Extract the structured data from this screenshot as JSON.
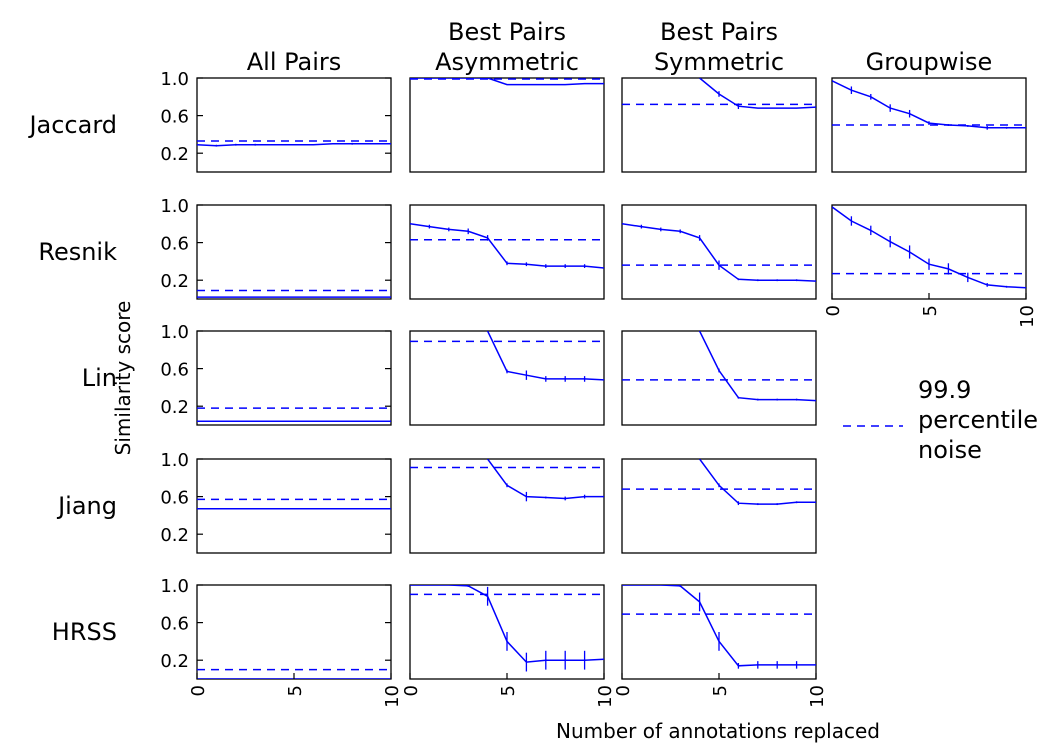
{
  "figure": {
    "xlabel": "Number of annotations replaced",
    "ylabel": "Similarity score",
    "columns": [
      "All Pairs",
      "Best Pairs\nAsymmetric",
      "Best Pairs\nSymmetric",
      "Groupwise"
    ],
    "rows": [
      "Jaccard",
      "Resnik",
      "Lin",
      "Jiang",
      "HRSS"
    ],
    "legend": {
      "label": "99.9\npercentile\nnoise",
      "position": "right",
      "style": "dashed"
    },
    "colors": {
      "series": "#0000ff",
      "noise": "#0000ff",
      "frame": "#000000"
    }
  },
  "chart_data": [
    {
      "type": "line",
      "row": "Jaccard",
      "column": "All Pairs",
      "xlim": [
        0,
        10
      ],
      "ylim": [
        0.0,
        1.0
      ],
      "y_ticks": [
        "1.0",
        "0.6",
        "0.2"
      ],
      "x_ticks": [],
      "grid": false,
      "noise": 0.33,
      "x": [
        0,
        1,
        2,
        3,
        4,
        5,
        6,
        7,
        8,
        9,
        10
      ],
      "y": [
        0.29,
        0.28,
        0.29,
        0.29,
        0.29,
        0.29,
        0.29,
        0.3,
        0.3,
        0.3,
        0.3
      ],
      "err": [
        0,
        0.01,
        0.01,
        0.01,
        0,
        0,
        0,
        0,
        0.01,
        0,
        0
      ]
    },
    {
      "type": "line",
      "row": "Jaccard",
      "column": "Best Pairs\nAsymmetric",
      "xlim": [
        0,
        10
      ],
      "ylim": [
        0.0,
        1.0
      ],
      "y_ticks": [],
      "x_ticks": [],
      "grid": false,
      "noise": 0.99,
      "x": [
        0,
        1,
        2,
        3,
        4,
        5,
        6,
        7,
        8,
        9,
        10
      ],
      "y": [
        1.0,
        1.0,
        1.0,
        1.0,
        1.0,
        0.93,
        0.93,
        0.93,
        0.93,
        0.94,
        0.94
      ],
      "err": [
        0,
        0,
        0,
        0,
        0,
        0,
        0,
        0,
        0,
        0,
        0
      ]
    },
    {
      "type": "line",
      "row": "Jaccard",
      "column": "Best Pairs\nSymmetric",
      "xlim": [
        0,
        10
      ],
      "ylim": [
        0.0,
        1.0
      ],
      "y_ticks": [],
      "x_ticks": [],
      "grid": false,
      "noise": 0.72,
      "x": [
        4,
        5,
        6,
        7,
        8,
        9,
        10
      ],
      "y": [
        1.0,
        0.83,
        0.7,
        0.68,
        0.68,
        0.68,
        0.69
      ],
      "err": [
        0,
        0.03,
        0.03,
        0,
        0,
        0,
        0
      ]
    },
    {
      "type": "line",
      "row": "Jaccard",
      "column": "Groupwise",
      "xlim": [
        0,
        10
      ],
      "ylim": [
        0.0,
        1.0
      ],
      "y_ticks": [],
      "x_ticks": [],
      "grid": false,
      "noise": 0.5,
      "x": [
        0,
        1,
        2,
        3,
        4,
        5,
        6,
        7,
        8,
        9,
        10
      ],
      "y": [
        0.97,
        0.87,
        0.8,
        0.68,
        0.62,
        0.52,
        0.5,
        0.49,
        0.47,
        0.47,
        0.47
      ],
      "err": [
        0,
        0.04,
        0.03,
        0.04,
        0.04,
        0.02,
        0.01,
        0.01,
        0.02,
        0.01,
        0
      ]
    },
    {
      "type": "line",
      "row": "Resnik",
      "column": "All Pairs",
      "xlim": [
        0,
        10
      ],
      "ylim": [
        0.0,
        1.0
      ],
      "y_ticks": [
        "1.0",
        "0.6",
        "0.2"
      ],
      "x_ticks": [],
      "grid": false,
      "noise": 0.09,
      "x": [
        0,
        1,
        2,
        3,
        4,
        5,
        6,
        7,
        8,
        9,
        10
      ],
      "y": [
        0.02,
        0.02,
        0.02,
        0.02,
        0.02,
        0.02,
        0.02,
        0.02,
        0.02,
        0.02,
        0.02
      ],
      "err": [
        0,
        0,
        0,
        0,
        0,
        0,
        0,
        0,
        0,
        0,
        0
      ]
    },
    {
      "type": "line",
      "row": "Resnik",
      "column": "Best Pairs\nAsymmetric",
      "xlim": [
        0,
        10
      ],
      "ylim": [
        0.0,
        1.0
      ],
      "y_ticks": [],
      "x_ticks": [],
      "grid": false,
      "noise": 0.63,
      "x": [
        0,
        1,
        2,
        3,
        4,
        5,
        6,
        7,
        8,
        9,
        10
      ],
      "y": [
        0.8,
        0.77,
        0.74,
        0.72,
        0.65,
        0.38,
        0.37,
        0.35,
        0.35,
        0.35,
        0.33
      ],
      "err": [
        0,
        0.02,
        0.02,
        0.03,
        0.03,
        0.02,
        0.02,
        0.02,
        0.02,
        0.02,
        0
      ]
    },
    {
      "type": "line",
      "row": "Resnik",
      "column": "Best Pairs\nSymmetric",
      "xlim": [
        0,
        10
      ],
      "ylim": [
        0.0,
        1.0
      ],
      "y_ticks": [],
      "x_ticks": [],
      "grid": false,
      "noise": 0.36,
      "x": [
        0,
        1,
        2,
        3,
        4,
        5,
        6,
        7,
        8,
        9,
        10
      ],
      "y": [
        0.8,
        0.77,
        0.74,
        0.72,
        0.65,
        0.36,
        0.21,
        0.2,
        0.2,
        0.2,
        0.19
      ],
      "err": [
        0,
        0.02,
        0.02,
        0.02,
        0.03,
        0.05,
        0.01,
        0.01,
        0.01,
        0.01,
        0
      ]
    },
    {
      "type": "line",
      "row": "Resnik",
      "column": "Groupwise",
      "xlim": [
        0,
        10
      ],
      "ylim": [
        0.0,
        1.0
      ],
      "y_ticks": [],
      "x_ticks": [
        "0",
        "5",
        "10"
      ],
      "grid": false,
      "noise": 0.27,
      "x": [
        0,
        1,
        2,
        3,
        4,
        5,
        6,
        7,
        8,
        9,
        10
      ],
      "y": [
        0.98,
        0.83,
        0.73,
        0.61,
        0.5,
        0.37,
        0.32,
        0.23,
        0.15,
        0.13,
        0.12
      ],
      "err": [
        0,
        0.05,
        0.05,
        0.06,
        0.07,
        0.06,
        0.06,
        0.05,
        0.02,
        0.01,
        0
      ]
    },
    {
      "type": "line",
      "row": "Lin",
      "column": "All Pairs",
      "xlim": [
        0,
        10
      ],
      "ylim": [
        0.0,
        1.0
      ],
      "y_ticks": [
        "1.0",
        "0.6",
        "0.2"
      ],
      "x_ticks": [],
      "grid": false,
      "noise": 0.18,
      "x": [
        0,
        1,
        2,
        3,
        4,
        5,
        6,
        7,
        8,
        9,
        10
      ],
      "y": [
        0.04,
        0.04,
        0.04,
        0.04,
        0.04,
        0.04,
        0.04,
        0.04,
        0.04,
        0.04,
        0.04
      ],
      "err": [
        0,
        0,
        0,
        0,
        0,
        0,
        0,
        0,
        0,
        0,
        0
      ]
    },
    {
      "type": "line",
      "row": "Lin",
      "column": "Best Pairs\nAsymmetric",
      "xlim": [
        0,
        10
      ],
      "ylim": [
        0.0,
        1.0
      ],
      "y_ticks": [],
      "x_ticks": [],
      "grid": false,
      "noise": 0.89,
      "x": [
        4,
        5,
        6,
        7,
        8,
        9,
        10
      ],
      "y": [
        1.0,
        0.57,
        0.53,
        0.49,
        0.49,
        0.49,
        0.48
      ],
      "err": [
        0,
        0.02,
        0.05,
        0.03,
        0.03,
        0.03,
        0
      ]
    },
    {
      "type": "line",
      "row": "Lin",
      "column": "Best Pairs\nSymmetric",
      "xlim": [
        0,
        10
      ],
      "ylim": [
        0.0,
        1.0
      ],
      "y_ticks": [],
      "x_ticks": [],
      "grid": false,
      "noise": 0.48,
      "x": [
        4,
        5,
        6,
        7,
        8,
        9,
        10
      ],
      "y": [
        1.0,
        0.58,
        0.29,
        0.27,
        0.27,
        0.27,
        0.26
      ],
      "err": [
        0,
        0.02,
        0.01,
        0.01,
        0.01,
        0.01,
        0
      ]
    },
    {
      "type": "line",
      "row": "Jiang",
      "column": "All Pairs",
      "xlim": [
        0,
        10
      ],
      "ylim": [
        0.0,
        1.0
      ],
      "y_ticks": [
        "1.0",
        "0.6",
        "0.2"
      ],
      "x_ticks": [],
      "grid": false,
      "noise": 0.57,
      "x": [
        0,
        1,
        2,
        3,
        4,
        5,
        6,
        7,
        8,
        9,
        10
      ],
      "y": [
        0.47,
        0.47,
        0.47,
        0.47,
        0.47,
        0.47,
        0.47,
        0.47,
        0.47,
        0.47,
        0.47
      ],
      "err": [
        0,
        0,
        0,
        0,
        0,
        0,
        0,
        0,
        0,
        0,
        0
      ]
    },
    {
      "type": "line",
      "row": "Jiang",
      "column": "Best Pairs\nAsymmetric",
      "xlim": [
        0,
        10
      ],
      "ylim": [
        0.0,
        1.0
      ],
      "y_ticks": [],
      "x_ticks": [],
      "grid": false,
      "noise": 0.91,
      "x": [
        4,
        5,
        6,
        7,
        8,
        9,
        10
      ],
      "y": [
        1.0,
        0.72,
        0.6,
        0.59,
        0.58,
        0.6,
        0.6
      ],
      "err": [
        0,
        0.02,
        0.05,
        0.01,
        0.02,
        0.02,
        0
      ]
    },
    {
      "type": "line",
      "row": "Jiang",
      "column": "Best Pairs\nSymmetric",
      "xlim": [
        0,
        10
      ],
      "ylim": [
        0.0,
        1.0
      ],
      "y_ticks": [],
      "x_ticks": [],
      "grid": false,
      "noise": 0.68,
      "x": [
        4,
        5,
        6,
        7,
        8,
        9,
        10
      ],
      "y": [
        1.0,
        0.72,
        0.53,
        0.52,
        0.52,
        0.54,
        0.54
      ],
      "err": [
        0,
        0.02,
        0.02,
        0.01,
        0.01,
        0.01,
        0
      ]
    },
    {
      "type": "line",
      "row": "HRSS",
      "column": "All Pairs",
      "xlim": [
        0,
        10
      ],
      "ylim": [
        0.0,
        1.0
      ],
      "y_ticks": [
        "1.0",
        "0.6",
        "0.2"
      ],
      "x_ticks": [
        "0",
        "5",
        "10"
      ],
      "grid": false,
      "noise": 0.1,
      "x": [
        0,
        1,
        2,
        3,
        4,
        5,
        6,
        7,
        8,
        9,
        10
      ],
      "y": [
        0.0,
        0.0,
        0.0,
        0.0,
        0.0,
        0.0,
        0.0,
        0.0,
        0.0,
        0.0,
        0.0
      ],
      "err": [
        0,
        0,
        0,
        0,
        0,
        0,
        0,
        0,
        0,
        0,
        0
      ]
    },
    {
      "type": "line",
      "row": "HRSS",
      "column": "Best Pairs\nAsymmetric",
      "xlim": [
        0,
        10
      ],
      "ylim": [
        0.0,
        1.0
      ],
      "y_ticks": [],
      "x_ticks": [
        "0",
        "5",
        "10"
      ],
      "grid": false,
      "noise": 0.9,
      "x": [
        0,
        1,
        2,
        3,
        4,
        5,
        6,
        7,
        8,
        9,
        10
      ],
      "y": [
        1.0,
        1.0,
        1.0,
        0.99,
        0.88,
        0.4,
        0.18,
        0.2,
        0.2,
        0.2,
        0.21
      ],
      "err": [
        0,
        0,
        0,
        0.01,
        0.1,
        0.1,
        0.1,
        0.1,
        0.1,
        0.1,
        0
      ]
    },
    {
      "type": "line",
      "row": "HRSS",
      "column": "Best Pairs\nSymmetric",
      "xlim": [
        0,
        10
      ],
      "ylim": [
        0.0,
        1.0
      ],
      "y_ticks": [],
      "x_ticks": [
        "0",
        "5",
        "10"
      ],
      "grid": false,
      "noise": 0.69,
      "x": [
        0,
        1,
        2,
        3,
        4,
        5,
        6,
        7,
        8,
        9,
        10
      ],
      "y": [
        1.0,
        1.0,
        1.0,
        0.99,
        0.82,
        0.4,
        0.14,
        0.15,
        0.15,
        0.15,
        0.15
      ],
      "err": [
        0,
        0,
        0,
        0.01,
        0.1,
        0.1,
        0.03,
        0.04,
        0.04,
        0.04,
        0
      ]
    }
  ]
}
